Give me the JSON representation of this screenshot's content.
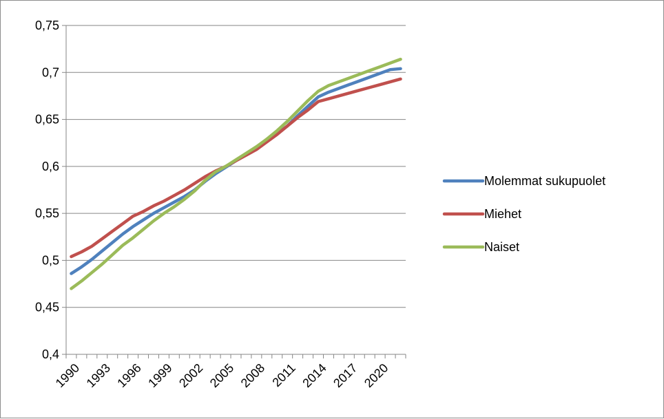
{
  "chart_data": {
    "type": "line",
    "title": "",
    "xlabel": "",
    "ylabel": "",
    "x": [
      1990,
      1991,
      1992,
      1993,
      1994,
      1995,
      1996,
      1997,
      1998,
      1999,
      2000,
      2001,
      2002,
      2003,
      2004,
      2005,
      2006,
      2007,
      2008,
      2009,
      2010,
      2011,
      2012,
      2013,
      2014,
      2015,
      2016,
      2017,
      2018,
      2019,
      2020,
      2021,
      2022
    ],
    "x_tick_labels": [
      "1990",
      "1993",
      "1996",
      "1999",
      "2002",
      "2005",
      "2008",
      "2011",
      "2014",
      "2017",
      "2020"
    ],
    "y_tick_labels": [
      "0,4",
      "0,45",
      "0,5",
      "0,55",
      "0,6",
      "0,65",
      "0,7",
      "0,75"
    ],
    "ylim": [
      0.4,
      0.75
    ],
    "y_ticks": [
      0.4,
      0.45,
      0.5,
      0.55,
      0.6,
      0.65,
      0.7,
      0.75
    ],
    "grid": true,
    "legend_position": "right",
    "series": [
      {
        "name": "Molemmat sukupuolet",
        "color": "#4f81bd",
        "values": [
          0.486,
          0.493,
          0.501,
          0.51,
          0.519,
          0.528,
          0.536,
          0.543,
          0.55,
          0.556,
          0.562,
          0.568,
          0.575,
          0.584,
          0.592,
          0.599,
          0.606,
          0.613,
          0.62,
          0.627,
          0.635,
          0.643,
          0.654,
          0.664,
          0.674,
          0.679,
          0.683,
          0.687,
          0.691,
          0.695,
          0.699,
          0.703,
          0.704
        ]
      },
      {
        "name": "Miehet",
        "color": "#c0504d",
        "values": [
          0.504,
          0.509,
          0.515,
          0.523,
          0.531,
          0.539,
          0.547,
          0.552,
          0.558,
          0.563,
          0.569,
          0.575,
          0.582,
          0.589,
          0.595,
          0.6,
          0.606,
          0.612,
          0.618,
          0.626,
          0.634,
          0.643,
          0.652,
          0.66,
          0.669,
          0.672,
          0.675,
          0.678,
          0.681,
          0.684,
          0.687,
          0.69,
          0.693
        ]
      },
      {
        "name": "Naiset",
        "color": "#9bbb59",
        "values": [
          0.47,
          0.478,
          0.487,
          0.496,
          0.506,
          0.516,
          0.524,
          0.533,
          0.542,
          0.55,
          0.557,
          0.565,
          0.574,
          0.585,
          0.594,
          0.6,
          0.607,
          0.614,
          0.621,
          0.629,
          0.638,
          0.648,
          0.659,
          0.67,
          0.68,
          0.686,
          0.69,
          0.694,
          0.698,
          0.702,
          0.706,
          0.71,
          0.714
        ]
      }
    ]
  }
}
